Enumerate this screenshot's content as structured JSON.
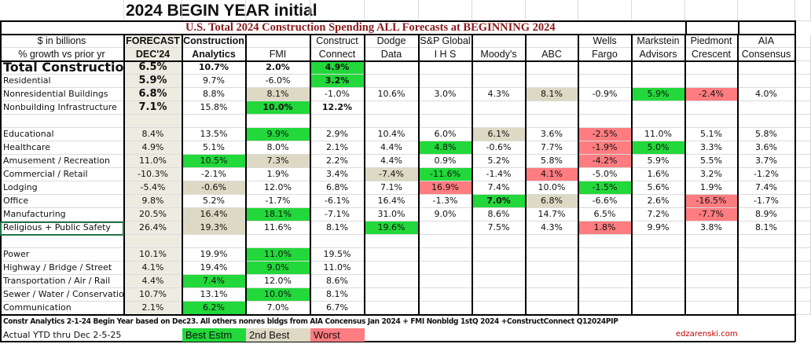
{
  "title": "2024 BEGIN YEAR initial",
  "subtitle": "U.S. Total 2024 Construction Spending ALL Forecasts at BEGINNING 2024",
  "header": {
    "label_line1": "$ in billions",
    "label_line2": "% growth vs prior yr",
    "columns": [
      {
        "l1": "FORECAST",
        "l2": "DEC'24"
      },
      {
        "l1": "Construction",
        "l2": "Analytics"
      },
      {
        "l1": "",
        "l2": "FMI"
      },
      {
        "l1": "Construct",
        "l2": "Connect"
      },
      {
        "l1": "Dodge",
        "l2": "Data"
      },
      {
        "l1": "S&P Global",
        "l2": "I H S"
      },
      {
        "l1": "",
        "l2": "Moody's"
      },
      {
        "l1": "",
        "l2": "ABC"
      },
      {
        "l1": "Wells",
        "l2": "Fargo"
      },
      {
        "l1": "Markstein",
        "l2": "Advisors"
      },
      {
        "l1": "Piedmont",
        "l2": "Crescent"
      },
      {
        "l1": "AIA",
        "l2": "Consensus"
      }
    ]
  },
  "rows": [
    {
      "label": "Total Construction",
      "cells": [
        [
          "6.5%",
          ""
        ],
        [
          "10.7%",
          ""
        ],
        [
          "2.0%",
          ""
        ],
        [
          "4.9%",
          "g"
        ],
        [
          "",
          ""
        ],
        [
          "",
          ""
        ],
        [
          "",
          ""
        ],
        [
          "",
          ""
        ],
        [
          "",
          ""
        ],
        [
          "",
          ""
        ],
        [
          "",
          ""
        ],
        [
          "",
          ""
        ]
      ]
    },
    {
      "label": "Residential",
      "cells": [
        [
          "5.9%",
          ""
        ],
        [
          "9.7%",
          ""
        ],
        [
          "-6.0%",
          ""
        ],
        [
          "3.2%",
          "g"
        ],
        [
          "",
          ""
        ],
        [
          "",
          ""
        ],
        [
          "",
          ""
        ],
        [
          "",
          ""
        ],
        [
          "",
          ""
        ],
        [
          "",
          ""
        ],
        [
          "",
          ""
        ],
        [
          "",
          ""
        ]
      ]
    },
    {
      "label": "Nonresidential Buildings",
      "cells": [
        [
          "6.8%",
          ""
        ],
        [
          "8.8%",
          ""
        ],
        [
          "8.1%",
          "t"
        ],
        [
          "-1.0%",
          ""
        ],
        [
          "10.6%",
          ""
        ],
        [
          "3.0%",
          ""
        ],
        [
          "4.3%",
          ""
        ],
        [
          "8.1%",
          "t"
        ],
        [
          "-0.9%",
          ""
        ],
        [
          "5.9%",
          "g"
        ],
        [
          "-2.4%",
          "r"
        ],
        [
          "4.0%",
          ""
        ]
      ]
    },
    {
      "label": "Nonbuilding Infrastructure",
      "cells": [
        [
          "7.1%",
          ""
        ],
        [
          "15.8%",
          ""
        ],
        [
          "10.0%",
          "g"
        ],
        [
          "12.2%",
          ""
        ],
        [
          "",
          ""
        ],
        [
          "",
          ""
        ],
        [
          "",
          ""
        ],
        [
          "",
          ""
        ],
        [
          "",
          ""
        ],
        [
          "",
          ""
        ],
        [
          "",
          ""
        ],
        [
          "",
          ""
        ]
      ]
    },
    {
      "label": "",
      "cells": []
    },
    {
      "label": "Educational",
      "cells": [
        [
          "8.4%",
          ""
        ],
        [
          "13.5%",
          ""
        ],
        [
          "9.9%",
          "g"
        ],
        [
          "2.9%",
          ""
        ],
        [
          "10.4%",
          ""
        ],
        [
          "6.0%",
          ""
        ],
        [
          "6.1%",
          "t"
        ],
        [
          "3.6%",
          ""
        ],
        [
          "-2.5%",
          "r"
        ],
        [
          "11.0%",
          ""
        ],
        [
          "5.1%",
          ""
        ],
        [
          "5.8%",
          ""
        ]
      ]
    },
    {
      "label": "Healthcare",
      "cells": [
        [
          "4.9%",
          ""
        ],
        [
          "5.1%",
          ""
        ],
        [
          "8.0%",
          ""
        ],
        [
          "2.1%",
          ""
        ],
        [
          "4.4%",
          ""
        ],
        [
          "4.8%",
          "g"
        ],
        [
          "-0.6%",
          ""
        ],
        [
          "7.7%",
          ""
        ],
        [
          "-1.9%",
          "r"
        ],
        [
          "5.0%",
          "g"
        ],
        [
          "3.3%",
          ""
        ],
        [
          "3.6%",
          ""
        ]
      ]
    },
    {
      "label": "Amusement / Recreation",
      "cells": [
        [
          "11.0%",
          ""
        ],
        [
          "10.5%",
          "g"
        ],
        [
          "7.3%",
          "t"
        ],
        [
          "2.2%",
          ""
        ],
        [
          "4.4%",
          ""
        ],
        [
          "0.9%",
          ""
        ],
        [
          "5.2%",
          ""
        ],
        [
          "5.8%",
          ""
        ],
        [
          "-4.2%",
          "r"
        ],
        [
          "5.9%",
          ""
        ],
        [
          "5.5%",
          ""
        ],
        [
          "3.7%",
          ""
        ]
      ]
    },
    {
      "label": "Commercial / Retail",
      "cells": [
        [
          "-10.3%",
          ""
        ],
        [
          "-2.1%",
          ""
        ],
        [
          "1.9%",
          ""
        ],
        [
          "3.4%",
          ""
        ],
        [
          "-7.4%",
          "t"
        ],
        [
          "-11.6%",
          "g"
        ],
        [
          "-1.4%",
          ""
        ],
        [
          "4.1%",
          "r"
        ],
        [
          "-5.0%",
          ""
        ],
        [
          "1.6%",
          ""
        ],
        [
          "3.2%",
          ""
        ],
        [
          "-1.2%",
          ""
        ]
      ]
    },
    {
      "label": "Lodging",
      "cells": [
        [
          "-5.4%",
          ""
        ],
        [
          "-0.6%",
          "t"
        ],
        [
          "12.0%",
          ""
        ],
        [
          "6.8%",
          ""
        ],
        [
          "7.1%",
          ""
        ],
        [
          "16.9%",
          "r"
        ],
        [
          "7.4%",
          ""
        ],
        [
          "10.0%",
          ""
        ],
        [
          "-1.5%",
          "g"
        ],
        [
          "5.6%",
          ""
        ],
        [
          "1.9%",
          ""
        ],
        [
          "7.4%",
          ""
        ]
      ]
    },
    {
      "label": "Office",
      "cells": [
        [
          "9.8%",
          ""
        ],
        [
          "5.2%",
          ""
        ],
        [
          "-1.7%",
          ""
        ],
        [
          "-6.1%",
          ""
        ],
        [
          "16.4%",
          ""
        ],
        [
          "-1.3%",
          ""
        ],
        [
          "7.0%",
          "g"
        ],
        [
          "6.8%",
          "t"
        ],
        [
          "-6.6%",
          ""
        ],
        [
          "2.6%",
          ""
        ],
        [
          "-16.5%",
          "r"
        ],
        [
          "-1.7%",
          ""
        ]
      ]
    },
    {
      "label": "Manufacturing",
      "cells": [
        [
          "20.5%",
          ""
        ],
        [
          "16.4%",
          "t"
        ],
        [
          "18.1%",
          "g"
        ],
        [
          "-7.1%",
          ""
        ],
        [
          "31.0%",
          ""
        ],
        [
          "9.0%",
          ""
        ],
        [
          "8.6%",
          ""
        ],
        [
          "14.7%",
          ""
        ],
        [
          "6.5%",
          ""
        ],
        [
          "7.2%",
          ""
        ],
        [
          "-7.7%",
          "r"
        ],
        [
          "8.9%",
          ""
        ]
      ]
    },
    {
      "label": "Religious + Public Safety",
      "cells": [
        [
          "26.4%",
          ""
        ],
        [
          "19.3%",
          "t"
        ],
        [
          "11.6%",
          ""
        ],
        [
          "8.1%",
          ""
        ],
        [
          "19.6%",
          "g"
        ],
        [
          "",
          ""
        ],
        [
          "7.5%",
          ""
        ],
        [
          "4.3%",
          ""
        ],
        [
          "1.8%",
          "r"
        ],
        [
          "9.9%",
          ""
        ],
        [
          "3.8%",
          ""
        ],
        [
          "8.1%",
          ""
        ]
      ]
    },
    {
      "label": "",
      "cells": []
    },
    {
      "label": "Power",
      "cells": [
        [
          "10.1%",
          ""
        ],
        [
          "19.9%",
          ""
        ],
        [
          "11.0%",
          "g"
        ],
        [
          "19.5%",
          ""
        ]
      ]
    },
    {
      "label": "Highway / Bridge / Street",
      "cells": [
        [
          "4.1%",
          ""
        ],
        [
          "19.4%",
          ""
        ],
        [
          "9.0%",
          "g"
        ],
        [
          "11.0%",
          ""
        ]
      ]
    },
    {
      "label": "Transportation / Air / Rail",
      "cells": [
        [
          "4.4%",
          ""
        ],
        [
          "7.4%",
          "g"
        ],
        [
          "12.0%",
          ""
        ],
        [
          "8.6%",
          ""
        ]
      ]
    },
    {
      "label": "Sewer / Water / Conservatio",
      "cells": [
        [
          "10.7%",
          ""
        ],
        [
          "13.1%",
          ""
        ],
        [
          "10.0%",
          "g"
        ],
        [
          "8.1%",
          ""
        ]
      ]
    },
    {
      "label": "Communication",
      "cells": [
        [
          "2.1%",
          ""
        ],
        [
          "6.2%",
          "g"
        ],
        [
          "7.0%",
          ""
        ],
        [
          "6.7%",
          ""
        ]
      ]
    }
  ],
  "note": "Constr Analytics 2-1-24 Begin Year based on Dec23. All others nonres bldgs from AIA Concensus Jan 2024 + FMI Nonbldg 1stQ 2024 +ConstructConnect Q12024PIP",
  "actual": "Actual YTD thru Dec 2-5-25",
  "legend": {
    "best": "Best Estm",
    "second": "2nd Best",
    "worst": "Worst"
  },
  "site": "edzarenski.com",
  "colors": {
    "best": "#22d83a",
    "second": "#ddd9c4",
    "worst": "#ff7c80",
    "subtitle": "#8b1a1a"
  }
}
